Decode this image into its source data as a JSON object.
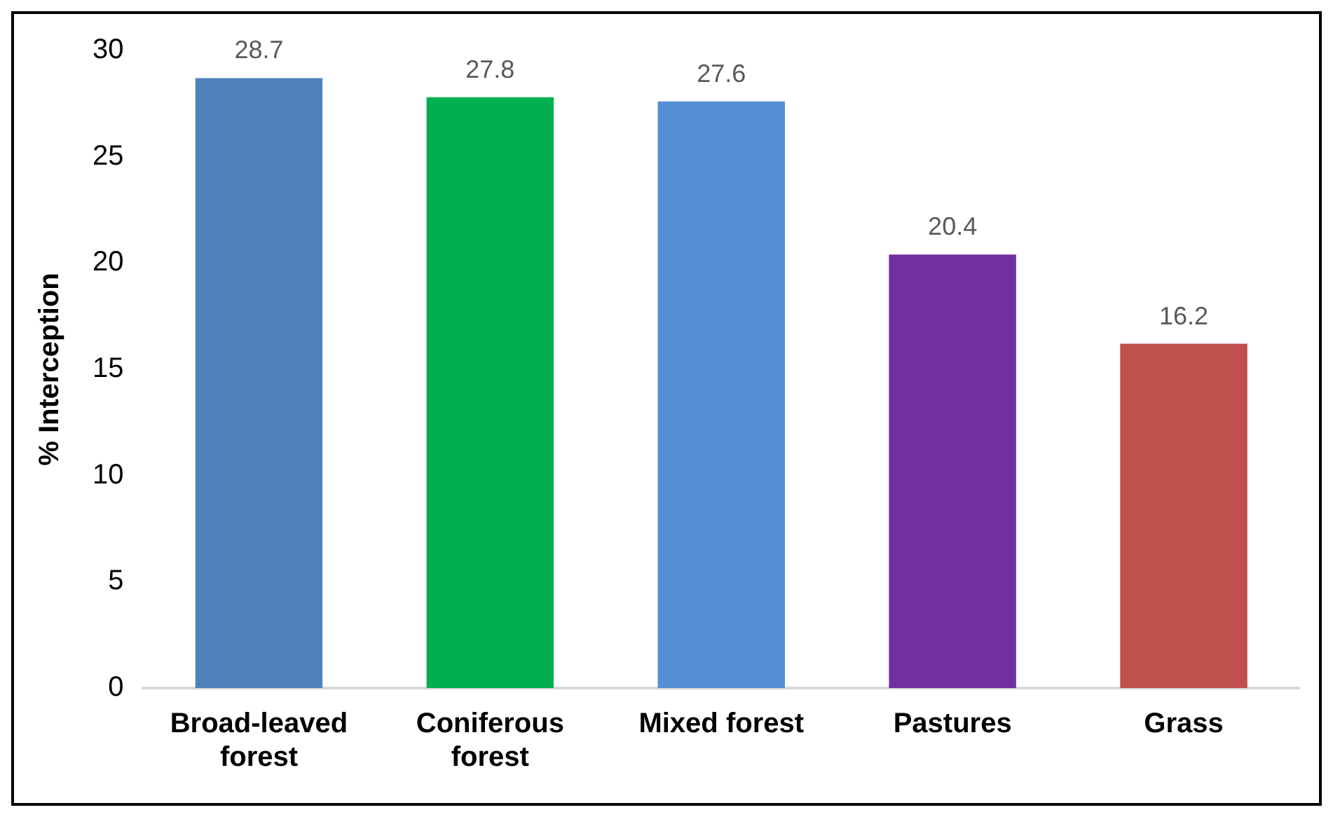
{
  "chart_data": {
    "type": "bar",
    "ylabel": "% Interception",
    "categories": [
      "Broad-leaved forest",
      "Coniferous forest",
      "Mixed forest",
      "Pastures",
      "Grass"
    ],
    "values": [
      28.7,
      27.8,
      27.6,
      20.4,
      16.2
    ],
    "colors": [
      "#4f81bd",
      "#00b050",
      "#558ed5",
      "#7030a0",
      "#c0504d"
    ],
    "ylim": [
      0,
      30
    ],
    "yticks": [
      0,
      5,
      10,
      15,
      20,
      25,
      30
    ],
    "grid": false,
    "legend": false,
    "data_labels": true
  }
}
